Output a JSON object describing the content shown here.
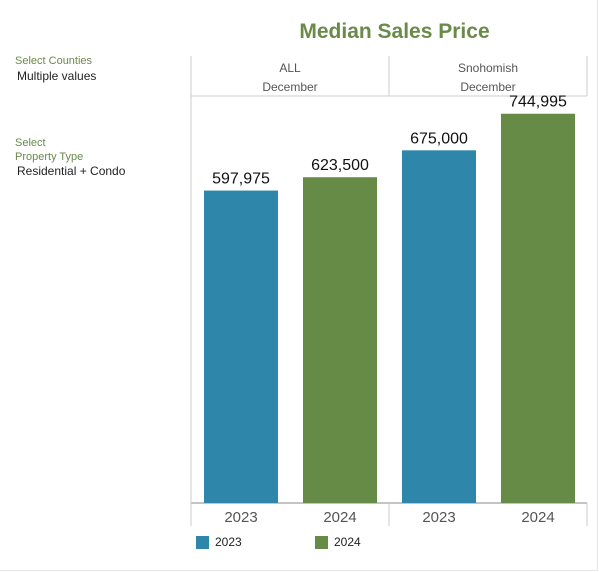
{
  "title": "Median Sales Price",
  "filters": [
    {
      "label_lines": [
        "Select Counties"
      ],
      "value": "Multiple values"
    },
    {
      "label_lines": [
        "Select",
        "Property Type"
      ],
      "value": "Residential + Condo"
    }
  ],
  "colors": {
    "2023": "#2e86ab",
    "2024": "#668b46",
    "title": "#6a8a4a"
  },
  "chart_data": {
    "type": "bar",
    "title": "Median Sales Price",
    "panels": [
      {
        "name": "ALL",
        "period": "December",
        "categories": [
          "2023",
          "2024"
        ],
        "values": [
          597975,
          623500
        ],
        "labels": [
          "597,975",
          "623,500"
        ]
      },
      {
        "name": "Snohomish",
        "period": "December",
        "categories": [
          "2023",
          "2024"
        ],
        "values": [
          675000,
          744995
        ],
        "labels": [
          "675,000",
          "744,995"
        ]
      }
    ],
    "ylim": [
      0,
      800000
    ],
    "legend": [
      {
        "name": "2023"
      },
      {
        "name": "2024"
      }
    ],
    "legend_position": "bottom-left",
    "grid": false
  }
}
